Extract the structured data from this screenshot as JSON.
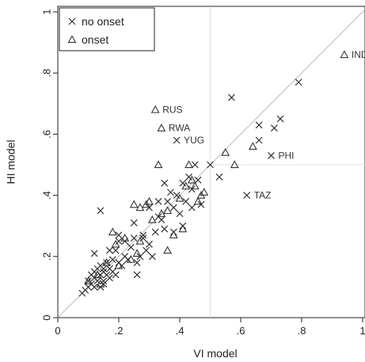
{
  "chart_data": {
    "type": "scatter",
    "xlabel": "VI model",
    "ylabel": "HI model",
    "xlim": [
      0,
      1
    ],
    "ylim": [
      0,
      1
    ],
    "x_ticks": [
      {
        "value": 0,
        "label": "0"
      },
      {
        "value": 0.2,
        "label": ".2"
      },
      {
        "value": 0.4,
        "label": ".4"
      },
      {
        "value": 0.6,
        "label": ".6"
      },
      {
        "value": 0.8,
        "label": ".8"
      },
      {
        "value": 1,
        "label": "1"
      }
    ],
    "y_ticks": [
      {
        "value": 0,
        "label": "0"
      },
      {
        "value": 0.2,
        "label": ".2"
      },
      {
        "value": 0.4,
        "label": ".4"
      },
      {
        "value": 0.6,
        "label": ".6"
      },
      {
        "value": 0.8,
        "label": ".8"
      },
      {
        "value": 1,
        "label": "1"
      }
    ],
    "legend": {
      "position": "top-left",
      "entries": [
        {
          "label": "no onset",
          "marker": "x"
        },
        {
          "label": "onset",
          "marker": "triangle"
        }
      ]
    },
    "reference_lines": {
      "diagonal": true,
      "vertical_x": 0.5,
      "horizontal_y": 0.5
    },
    "colors": {
      "marker": "#333333",
      "reference": "#bbbbbb",
      "guide": "#dddddd",
      "axis": "#222222"
    },
    "series": [
      {
        "name": "no onset",
        "marker": "x",
        "points": [
          [
            0.08,
            0.08
          ],
          [
            0.09,
            0.09
          ],
          [
            0.1,
            0.1
          ],
          [
            0.1,
            0.12
          ],
          [
            0.11,
            0.11
          ],
          [
            0.11,
            0.14
          ],
          [
            0.12,
            0.1
          ],
          [
            0.12,
            0.13
          ],
          [
            0.12,
            0.15
          ],
          [
            0.13,
            0.12
          ],
          [
            0.13,
            0.16
          ],
          [
            0.14,
            0.1
          ],
          [
            0.14,
            0.14
          ],
          [
            0.14,
            0.17
          ],
          [
            0.15,
            0.12
          ],
          [
            0.15,
            0.16
          ],
          [
            0.15,
            0.11
          ],
          [
            0.16,
            0.14
          ],
          [
            0.16,
            0.18
          ],
          [
            0.17,
            0.13
          ],
          [
            0.17,
            0.16
          ],
          [
            0.18,
            0.15
          ],
          [
            0.18,
            0.19
          ],
          [
            0.19,
            0.14
          ],
          [
            0.19,
            0.22
          ],
          [
            0.2,
            0.18
          ],
          [
            0.2,
            0.25
          ],
          [
            0.21,
            0.17
          ],
          [
            0.22,
            0.2
          ],
          [
            0.23,
            0.19
          ],
          [
            0.24,
            0.23
          ],
          [
            0.25,
            0.26
          ],
          [
            0.26,
            0.14
          ],
          [
            0.26,
            0.18
          ],
          [
            0.27,
            0.2
          ],
          [
            0.28,
            0.27
          ],
          [
            0.29,
            0.22
          ],
          [
            0.3,
            0.24
          ],
          [
            0.31,
            0.2
          ],
          [
            0.32,
            0.28
          ],
          [
            0.33,
            0.33
          ],
          [
            0.34,
            0.32
          ],
          [
            0.35,
            0.29
          ],
          [
            0.36,
            0.38
          ],
          [
            0.37,
            0.41
          ],
          [
            0.38,
            0.36
          ],
          [
            0.39,
            0.4
          ],
          [
            0.4,
            0.34
          ],
          [
            0.41,
            0.44
          ],
          [
            0.42,
            0.38
          ],
          [
            0.43,
            0.46
          ],
          [
            0.44,
            0.42
          ],
          [
            0.45,
            0.5
          ],
          [
            0.46,
            0.45
          ],
          [
            0.47,
            0.37
          ],
          [
            0.12,
            0.21
          ],
          [
            0.14,
            0.35
          ],
          [
            0.15,
            0.15
          ],
          [
            0.17,
            0.22
          ],
          [
            0.2,
            0.27
          ],
          [
            0.22,
            0.25
          ],
          [
            0.25,
            0.31
          ],
          [
            0.28,
            0.26
          ],
          [
            0.3,
            0.36
          ],
          [
            0.33,
            0.38
          ],
          [
            0.35,
            0.44
          ],
          [
            0.38,
            0.28
          ],
          [
            0.41,
            0.3
          ],
          [
            0.44,
            0.36
          ],
          [
            0.5,
            0.5
          ],
          [
            0.53,
            0.46
          ],
          [
            0.57,
            0.72
          ],
          [
            0.62,
            0.4
          ],
          [
            0.66,
            0.58
          ],
          [
            0.66,
            0.63
          ],
          [
            0.7,
            0.53
          ],
          [
            0.71,
            0.62
          ],
          [
            0.73,
            0.65
          ],
          [
            0.79,
            0.77
          ],
          [
            0.39,
            0.58
          ]
        ]
      },
      {
        "name": "onset",
        "marker": "triangle",
        "points": [
          [
            0.1,
            0.12
          ],
          [
            0.13,
            0.14
          ],
          [
            0.14,
            0.11
          ],
          [
            0.16,
            0.18
          ],
          [
            0.18,
            0.28
          ],
          [
            0.19,
            0.24
          ],
          [
            0.2,
            0.17
          ],
          [
            0.22,
            0.26
          ],
          [
            0.24,
            0.19
          ],
          [
            0.26,
            0.21
          ],
          [
            0.27,
            0.25
          ],
          [
            0.29,
            0.37
          ],
          [
            0.3,
            0.38
          ],
          [
            0.31,
            0.32
          ],
          [
            0.33,
            0.5
          ],
          [
            0.34,
            0.34
          ],
          [
            0.36,
            0.22
          ],
          [
            0.38,
            0.27
          ],
          [
            0.4,
            0.39
          ],
          [
            0.41,
            0.29
          ],
          [
            0.42,
            0.43
          ],
          [
            0.43,
            0.5
          ],
          [
            0.44,
            0.45
          ],
          [
            0.45,
            0.43
          ],
          [
            0.46,
            0.38
          ],
          [
            0.47,
            0.4
          ],
          [
            0.48,
            0.41
          ],
          [
            0.55,
            0.54
          ],
          [
            0.58,
            0.5
          ],
          [
            0.64,
            0.56
          ],
          [
            0.25,
            0.37
          ],
          [
            0.27,
            0.36
          ],
          [
            0.36,
            0.35
          ],
          [
            0.32,
            0.68
          ],
          [
            0.34,
            0.62
          ],
          [
            0.94,
            0.86
          ]
        ]
      }
    ],
    "annotations": [
      {
        "text": "IND",
        "x": 0.94,
        "y": 0.86,
        "marker": "triangle"
      },
      {
        "text": "RUS",
        "x": 0.32,
        "y": 0.68,
        "marker": "triangle"
      },
      {
        "text": "RWA",
        "x": 0.34,
        "y": 0.62,
        "marker": "triangle"
      },
      {
        "text": "YUG",
        "x": 0.39,
        "y": 0.58,
        "marker": "x"
      },
      {
        "text": "PHI",
        "x": 0.7,
        "y": 0.53,
        "marker": "x"
      },
      {
        "text": "TAZ",
        "x": 0.62,
        "y": 0.4,
        "marker": "x"
      }
    ]
  }
}
